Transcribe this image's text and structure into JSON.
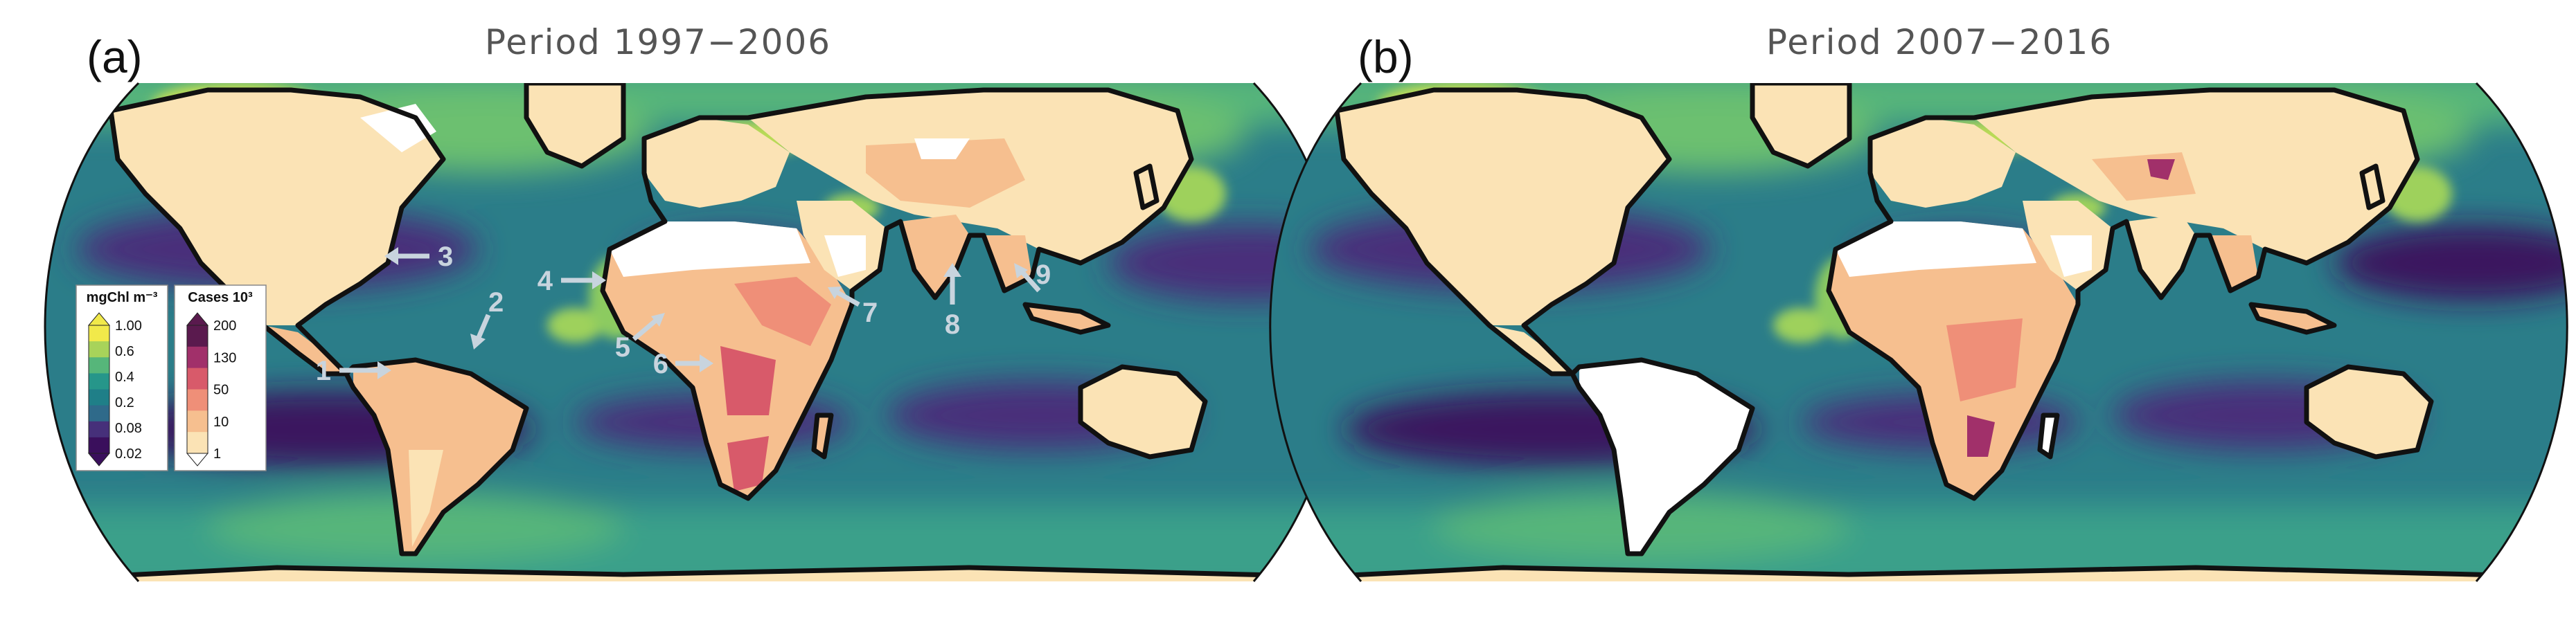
{
  "colors": {
    "ocean": [
      "#3a0f5c",
      "#46307a",
      "#2f6a8a",
      "#1f7f88",
      "#26968a",
      "#56b67a",
      "#a8d35a",
      "#f1e94a"
    ],
    "cases": [
      "#fbe3b5",
      "#f6bf8f",
      "#ef8f78",
      "#d85a6a",
      "#a1306a",
      "#5a1a4e"
    ],
    "no_data_land": "#ffffff",
    "arrow": "#c8d4de"
  },
  "panels": [
    {
      "letter": "(a)",
      "title": "Period 1997−2006",
      "arrows": [
        {
          "label": "1"
        },
        {
          "label": "2"
        },
        {
          "label": "3"
        },
        {
          "label": "4"
        },
        {
          "label": "5"
        },
        {
          "label": "6"
        },
        {
          "label": "7"
        },
        {
          "label": "8"
        },
        {
          "label": "9"
        }
      ]
    },
    {
      "letter": "(b)",
      "title": "Period 2007−2016"
    }
  ],
  "legend_chl": {
    "title": "mgChl m⁻³",
    "ticks": [
      "1.00",
      "0.6",
      "0.4",
      "0.2",
      "0.08",
      "0.02"
    ]
  },
  "legend_cases": {
    "title": "Cases 10³",
    "ticks": [
      "200",
      "130",
      "50",
      "10",
      "1"
    ]
  }
}
